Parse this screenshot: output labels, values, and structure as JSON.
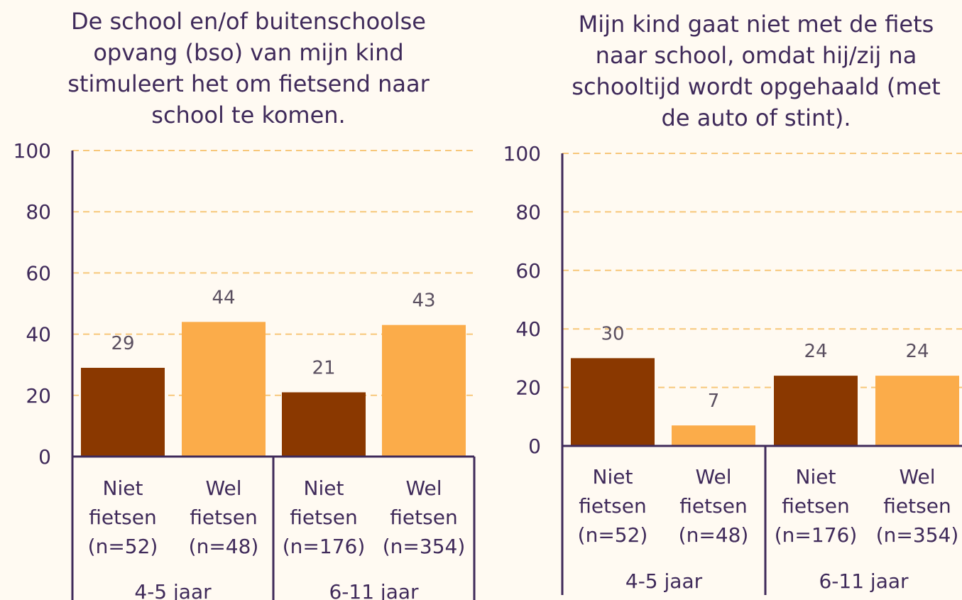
{
  "colors": {
    "niet_fietsen": "#8a3800",
    "wel_fietsen": "#fbac4a",
    "axis": "#3f2a5a",
    "grid": "#f7c77a",
    "background": "#fffaf2"
  },
  "chart_data": [
    {
      "type": "bar",
      "title": "De school en/of buitenschoolse\nopvang (bso) van mijn kind\nstimuleert het om fietsend naar\nschool te komen.",
      "xlabel": "",
      "ylabel": "",
      "ylim": [
        0,
        100
      ],
      "yticks": [
        "0",
        "20",
        "40",
        "60",
        "80",
        "100"
      ],
      "grid": true,
      "legend": "none",
      "groups": [
        "4-5 jaar",
        "6-11 jaar"
      ],
      "categories": [
        [
          "Niet",
          "fietsen",
          "(n=52)"
        ],
        [
          "Wel",
          "fietsen",
          "(n=48)"
        ],
        [
          "Niet",
          "fietsen",
          "(n=176)"
        ],
        [
          "Wel",
          "fietsen",
          "(n=354)"
        ]
      ],
      "values": [
        29,
        44,
        21,
        43
      ],
      "value_labels": [
        "29",
        "44",
        "21",
        "43"
      ],
      "bar_color_keys": [
        "niet_fietsen",
        "wel_fietsen",
        "niet_fietsen",
        "wel_fietsen"
      ]
    },
    {
      "type": "bar",
      "title": "Mijn kind gaat niet met de fiets\nnaar school, omdat hij/zij na\nschooltijd wordt opgehaald (met\nde auto of stint).",
      "xlabel": "",
      "ylabel": "",
      "ylim": [
        0,
        100
      ],
      "yticks": [
        "0",
        "20",
        "40",
        "60",
        "80",
        "100"
      ],
      "grid": true,
      "legend": "none",
      "groups": [
        "4-5 jaar",
        "6-11 jaar"
      ],
      "categories": [
        [
          "Niet",
          "fietsen",
          "(n=52)"
        ],
        [
          "Wel",
          "fietsen",
          "(n=48)"
        ],
        [
          "Niet",
          "fietsen",
          "(n=176)"
        ],
        [
          "Wel",
          "fietsen",
          "(n=354)"
        ]
      ],
      "values": [
        30,
        7,
        24,
        24
      ],
      "value_labels": [
        "30",
        "7",
        "24",
        "24"
      ],
      "bar_color_keys": [
        "niet_fietsen",
        "wel_fietsen",
        "niet_fietsen",
        "wel_fietsen"
      ]
    }
  ]
}
